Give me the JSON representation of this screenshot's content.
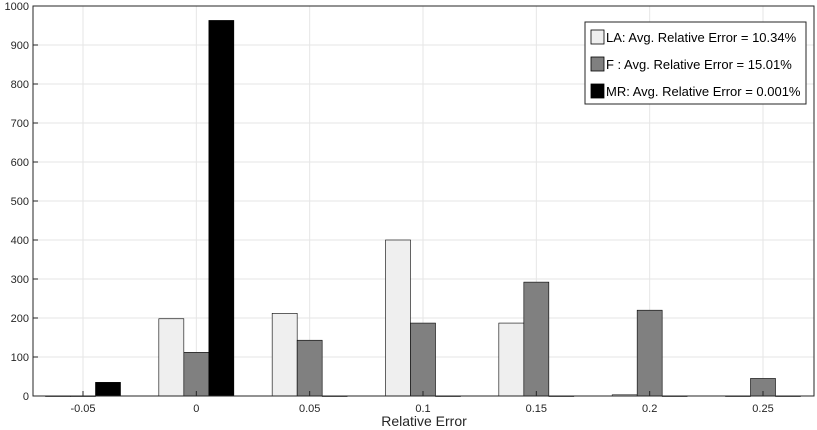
{
  "chart_data": {
    "type": "bar",
    "categories": [
      "-0.05",
      "0",
      "0.05",
      "0.1",
      "0.15",
      "0.2",
      "0.25"
    ],
    "series": [
      {
        "name": "LA: Avg. Relative Error = 10.34%",
        "color": "#efefef",
        "values": [
          0,
          198,
          212,
          400,
          187,
          3,
          0
        ]
      },
      {
        "name": "F : Avg. Relative Error = 15.01%",
        "color": "#808080",
        "values": [
          0,
          112,
          143,
          187,
          292,
          220,
          45
        ]
      },
      {
        "name": "MR: Avg. Relative Error = 0.001%",
        "color": "#000000",
        "values": [
          35,
          963,
          0,
          0,
          0,
          0,
          0
        ]
      }
    ],
    "title": "",
    "xlabel": "Relative Error",
    "ylabel": "",
    "ylim": [
      0,
      1000
    ],
    "yticks": [
      0,
      100,
      200,
      300,
      400,
      500,
      600,
      700,
      800,
      900,
      1000
    ],
    "grid": true,
    "legend_position": "top-right"
  }
}
